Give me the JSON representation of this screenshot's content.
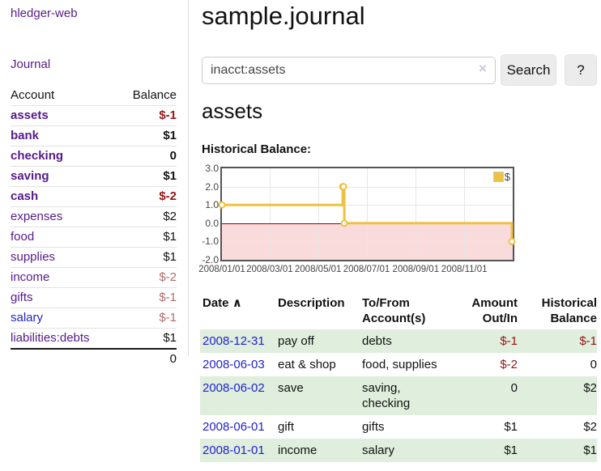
{
  "app": {
    "title": "hledger-web"
  },
  "sidebar": {
    "nav": {
      "journal": "Journal"
    },
    "accounts_header": {
      "account": "Account",
      "balance": "Balance"
    },
    "accounts": [
      {
        "name": "assets",
        "balance": "$-1"
      },
      {
        "name": "bank",
        "balance": "$1"
      },
      {
        "name": "checking",
        "balance": "0"
      },
      {
        "name": "saving",
        "balance": "$1"
      },
      {
        "name": "cash",
        "balance": "$-2"
      },
      {
        "name": "expenses",
        "balance": "$2"
      },
      {
        "name": "food",
        "balance": "$1"
      },
      {
        "name": "supplies",
        "balance": "$1"
      },
      {
        "name": "income",
        "balance": "$-2"
      },
      {
        "name": "gifts",
        "balance": "$-1"
      },
      {
        "name": "salary",
        "balance": "$-1"
      },
      {
        "name": "liabilities:debts",
        "balance": "$1"
      }
    ],
    "total": "0"
  },
  "main": {
    "title": "sample.journal",
    "search": {
      "query": "inacct:assets",
      "clear_icon": "×",
      "button": "Search",
      "help_button": "?"
    },
    "account_heading": "assets",
    "chart_label": "Historical Balance:"
  },
  "chart_data": {
    "type": "line",
    "style": "step-after",
    "title": "Historical Balance:",
    "series": [
      {
        "name": "$",
        "color": "#edc240",
        "points": [
          {
            "date": "2008-01-01",
            "value": 1
          },
          {
            "date": "2008-06-01",
            "value": 2
          },
          {
            "date": "2008-06-02",
            "value": 2
          },
          {
            "date": "2008-06-03",
            "value": 0
          },
          {
            "date": "2008-12-31",
            "value": -1
          }
        ]
      }
    ],
    "x_range": [
      "2008-01-01",
      "2009-01-01"
    ],
    "x_ticks": [
      "2008/01/01",
      "2008/03/01",
      "2008/05/01",
      "2008/07/01",
      "2008/09/01",
      "2008/11/01"
    ],
    "y_ticks": [
      3.0,
      2.0,
      1.0,
      0.0,
      -1.0,
      -2.0
    ],
    "y_tick_labels": [
      "3.0",
      "2.0",
      "1.0",
      "0.0",
      "-1.0",
      "-2.0"
    ],
    "ylim": [
      -2.0,
      3.0
    ],
    "legend": {
      "label": "$",
      "position": "top-right"
    },
    "grid": true,
    "negative_region_color": "#f9dbdb",
    "zero_line_color": "#8b0000"
  },
  "register": {
    "columns": [
      "Date",
      "Description",
      "To/From Account(s)",
      "Amount Out/In",
      "Historical Balance"
    ],
    "sort_indicator": "∧",
    "rows": [
      {
        "date": "2008-12-31",
        "description": "pay off",
        "accounts": "debts",
        "amount": "$-1",
        "balance": "$-1"
      },
      {
        "date": "2008-06-03",
        "description": "eat & shop",
        "accounts": "food, supplies",
        "amount": "$-2",
        "balance": "0"
      },
      {
        "date": "2008-06-02",
        "description": "save",
        "accounts": "saving, checking",
        "amount": "0",
        "balance": "$2"
      },
      {
        "date": "2008-06-01",
        "description": "gift",
        "accounts": "gifts",
        "amount": "$1",
        "balance": "$2"
      },
      {
        "date": "2008-01-01",
        "description": "income",
        "accounts": "salary",
        "amount": "$1",
        "balance": "$1"
      }
    ]
  }
}
